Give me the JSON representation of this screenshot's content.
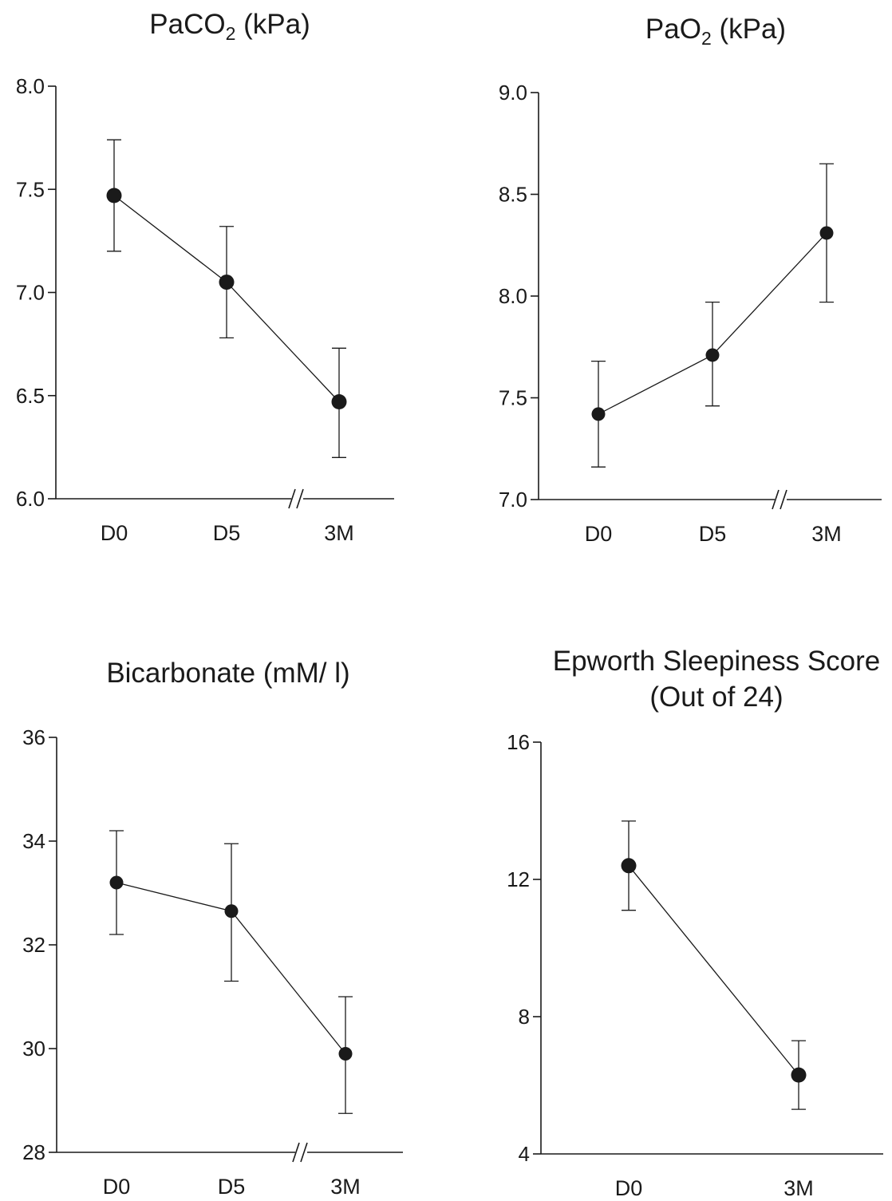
{
  "chart_data": [
    {
      "type": "line",
      "title": "PaCO₂ (kPa)",
      "categories": [
        "D0",
        "D5",
        "3M"
      ],
      "axis_break": "between D5 and 3M",
      "ylim": [
        6.0,
        8.0
      ],
      "yticks": [
        "6.0",
        "6.5",
        "7.0",
        "7.5",
        "8.0"
      ],
      "values": [
        7.47,
        7.05,
        6.47
      ],
      "error_low": [
        7.2,
        6.78,
        6.2
      ],
      "error_high": [
        7.74,
        7.32,
        6.73
      ]
    },
    {
      "type": "line",
      "title": "PaO₂ (kPa)",
      "categories": [
        "D0",
        "D5",
        "3M"
      ],
      "axis_break": "between D5 and 3M",
      "ylim": [
        7.0,
        9.0
      ],
      "yticks": [
        "7.0",
        "7.5",
        "8.0",
        "8.5",
        "9.0"
      ],
      "values": [
        7.42,
        7.71,
        8.31
      ],
      "error_low": [
        7.16,
        7.46,
        7.97
      ],
      "error_high": [
        7.68,
        7.97,
        8.65
      ]
    },
    {
      "type": "line",
      "title": "Bicarbonate (mM/ l)",
      "categories": [
        "D0",
        "D5",
        "3M"
      ],
      "axis_break": "between D5 and 3M",
      "ylim": [
        28,
        36
      ],
      "yticks": [
        "28",
        "30",
        "32",
        "34",
        "36"
      ],
      "values": [
        33.2,
        32.65,
        29.9
      ],
      "error_low": [
        32.2,
        31.3,
        28.75
      ],
      "error_high": [
        34.2,
        33.95,
        31.0
      ]
    },
    {
      "type": "line",
      "title": "Epworth Sleepiness Score\n(Out of 24)",
      "categories": [
        "D0",
        "3M"
      ],
      "ylim": [
        4,
        16
      ],
      "yticks": [
        "4",
        "8",
        "12",
        "16"
      ],
      "values": [
        12.4,
        6.3
      ],
      "error_low": [
        11.1,
        5.3
      ],
      "error_high": [
        13.7,
        7.3
      ]
    }
  ]
}
